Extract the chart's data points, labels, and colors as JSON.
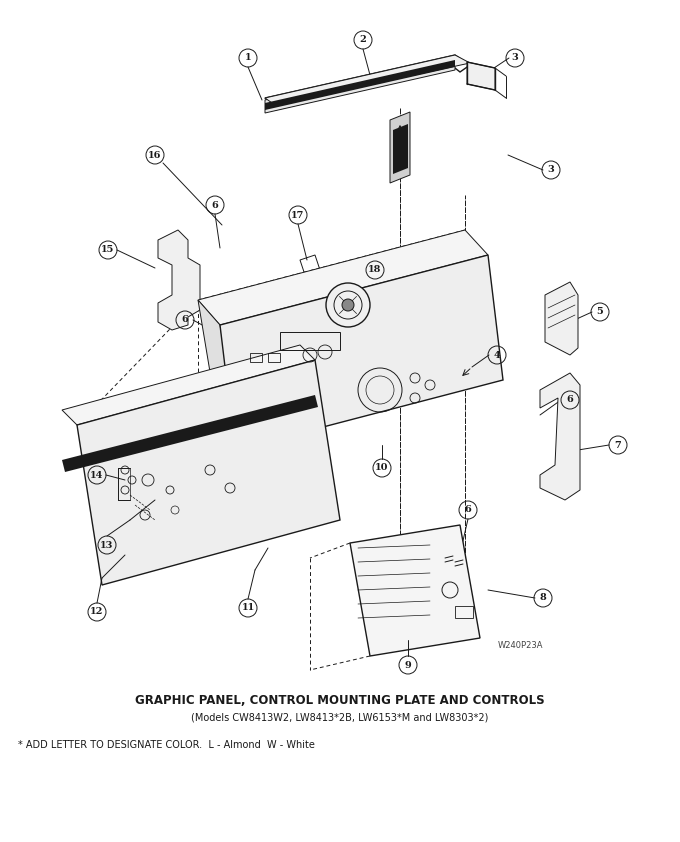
{
  "title": "GRAPHIC PANEL, CONTROL MOUNTING PLATE AND CONTROLS",
  "subtitle": "(Models CW8413W2, LW8413*2B, LW6153*M and LW8303*2)",
  "footnote": "* ADD LETTER TO DESIGNATE COLOR.  L - Almond  W - White",
  "watermark": "W240P23A",
  "bg_color": "#ffffff",
  "line_color": "#1a1a1a",
  "title_fontsize": 8.5,
  "subtitle_fontsize": 7,
  "footnote_fontsize": 7,
  "watermark_fontsize": 6
}
